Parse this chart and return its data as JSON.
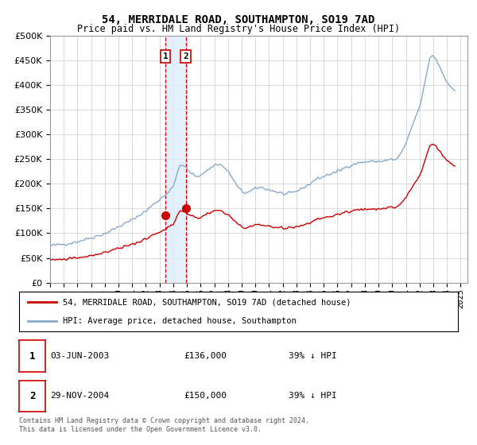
{
  "title": "54, MERRIDALE ROAD, SOUTHAMPTON, SO19 7AD",
  "subtitle": "Price paid vs. HM Land Registry's House Price Index (HPI)",
  "ylim": [
    0,
    500000
  ],
  "yticks": [
    0,
    50000,
    100000,
    150000,
    200000,
    250000,
    300000,
    350000,
    400000,
    450000,
    500000
  ],
  "xlim_start": 1995.0,
  "xlim_end": 2025.5,
  "grid_color": "#cccccc",
  "hpi_color": "#88aacc",
  "price_color": "#cc0000",
  "transaction1_date": 2003.42,
  "transaction1_price": 136000,
  "transaction2_date": 2004.91,
  "transaction2_price": 150000,
  "legend_label_red": "54, MERRIDALE ROAD, SOUTHAMPTON, SO19 7AD (detached house)",
  "legend_label_blue": "HPI: Average price, detached house, Southampton",
  "table_row1": [
    "1",
    "03-JUN-2003",
    "£136,000",
    "39% ↓ HPI"
  ],
  "table_row2": [
    "2",
    "29-NOV-2004",
    "£150,000",
    "39% ↓ HPI"
  ],
  "footer_text": "Contains HM Land Registry data © Crown copyright and database right 2024.\nThis data is licensed under the Open Government Licence v3.0.",
  "vline1_x": 2003.42,
  "vline2_x": 2004.91,
  "vline_color": "#dd0000",
  "vshade_color": "#ddeeff",
  "marker_color": "#cc0000",
  "hpi_base": 75000,
  "red_base": 46000,
  "scale_factor": 0.61
}
